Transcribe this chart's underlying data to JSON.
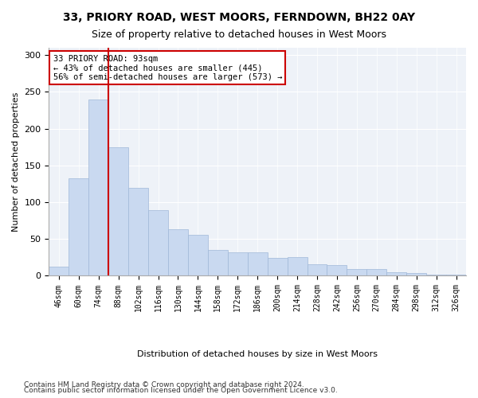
{
  "title1": "33, PRIORY ROAD, WEST MOORS, FERNDOWN, BH22 0AY",
  "title2": "Size of property relative to detached houses in West Moors",
  "xlabel": "Distribution of detached houses by size in West Moors",
  "ylabel": "Number of detached properties",
  "footer1": "Contains HM Land Registry data © Crown copyright and database right 2024.",
  "footer2": "Contains public sector information licensed under the Open Government Licence v3.0.",
  "annotation_line1": "33 PRIORY ROAD: 93sqm",
  "annotation_line2": "← 43% of detached houses are smaller (445)",
  "annotation_line3": "56% of semi-detached houses are larger (573) →",
  "property_size": 93,
  "bar_color": "#c9d9f0",
  "bar_edge_color": "#a0b8d8",
  "redline_color": "#cc0000",
  "annotation_box_color": "#cc0000",
  "background_color": "#eef2f8",
  "categories": [
    "46sqm",
    "60sqm",
    "74sqm",
    "88sqm",
    "102sqm",
    "116sqm",
    "130sqm",
    "144sqm",
    "158sqm",
    "172sqm",
    "186sqm",
    "200sqm",
    "214sqm",
    "228sqm",
    "242sqm",
    "256sqm",
    "270sqm",
    "284sqm",
    "298sqm",
    "312sqm",
    "326sqm"
  ],
  "bin_edges": [
    46,
    60,
    74,
    88,
    102,
    116,
    130,
    144,
    158,
    172,
    186,
    200,
    214,
    228,
    242,
    256,
    270,
    284,
    298,
    312,
    326,
    340
  ],
  "values": [
    12,
    132,
    240,
    175,
    119,
    89,
    63,
    56,
    35,
    32,
    32,
    24,
    25,
    16,
    15,
    9,
    9,
    5,
    4,
    2,
    1
  ],
  "ylim": [
    0,
    310
  ],
  "yticks": [
    0,
    50,
    100,
    150,
    200,
    250,
    300
  ]
}
